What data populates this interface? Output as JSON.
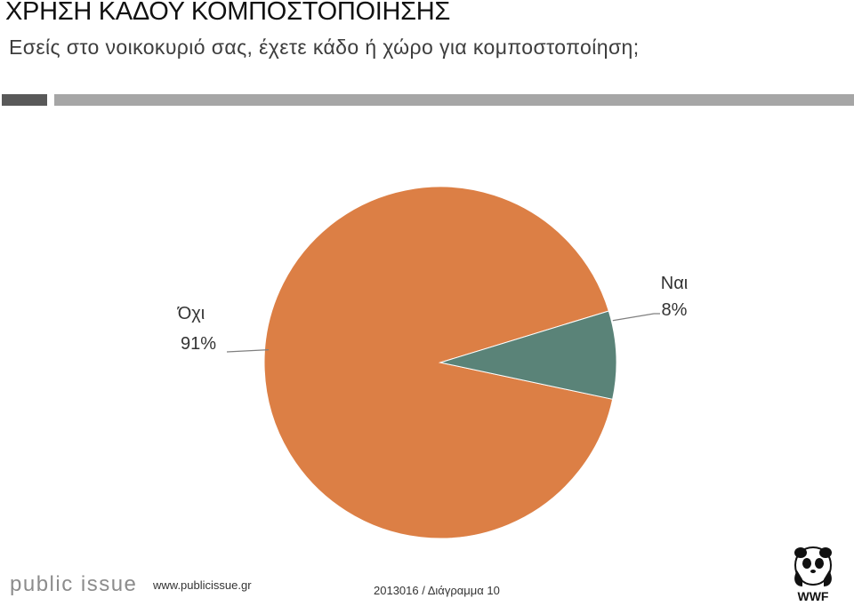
{
  "header": {
    "title": "ΧΡΗΣΗ ΚΑΔΟΥ ΚΟΜΠΟΣΤΟΠΟΙΗΣΗΣ",
    "subtitle": "Εσείς στο νοικοκυριό σας, έχετε κάδο ή χώρο για κομποστοποίηση;"
  },
  "chart_data": {
    "type": "pie",
    "title": "",
    "slices": [
      {
        "label": "Όχι",
        "value": 91,
        "value_label": "91%",
        "color": "#dc7f45"
      },
      {
        "label": "Ναι",
        "value": 8,
        "value_label": "8%",
        "color": "#5a8378"
      }
    ]
  },
  "footer": {
    "logo_text": "public issue",
    "url": "www.publicissue.gr",
    "code": "2013016 / Διάγραμμα 10",
    "brand_logo_text": "WWF"
  },
  "colors": {
    "accent_bar_dark": "#595959",
    "accent_bar_light": "#a6a6a6",
    "leader_line": "#7f7f7f"
  }
}
